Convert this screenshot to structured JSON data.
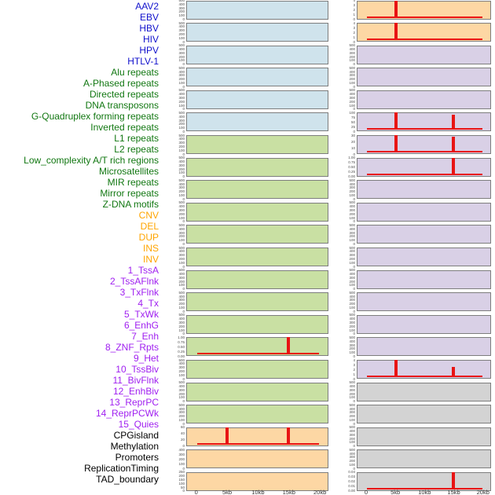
{
  "chart_data": {
    "type": "line",
    "title": "",
    "description": "Grid of 44 genomic-feature profile panels (two columns of 22 rows) showing density around a 0-20kb window; red spikes mark enrichment at 5kb and 15kb",
    "x_ticks": [
      "0",
      "5kb",
      "10kb",
      "15kb",
      "20kb"
    ],
    "x_range_kb": [
      0,
      20
    ],
    "spike_color": "#e81414",
    "groups": {
      "virus": {
        "label_color": "#1111cc",
        "fill": "#cfe3ec"
      },
      "repeat": {
        "label_color": "#117711",
        "fill": "#c9e0a3"
      },
      "sv": {
        "label_color": "#ffa500",
        "fill": "#fdd7a4"
      },
      "chromhmm": {
        "label_color": "#a020f0",
        "fill": "#d9d0e6"
      },
      "other": {
        "label_color": "#000000",
        "fill": "#d3d3d3"
      }
    },
    "panels": [
      {
        "label": "AAV2",
        "group": "virus",
        "column": "left",
        "row": 1,
        "y_ticks": [
          "500",
          "400",
          "300",
          "200",
          "100",
          "0"
        ],
        "spikes": [],
        "baseline": false
      },
      {
        "label": "EBV",
        "group": "virus",
        "column": "left",
        "row": 2,
        "y_ticks": [
          "500",
          "400",
          "300",
          "200",
          "100",
          "0"
        ],
        "spikes": [],
        "baseline": false
      },
      {
        "label": "HBV",
        "group": "virus",
        "column": "left",
        "row": 3,
        "y_ticks": [
          "500",
          "400",
          "300",
          "200",
          "100",
          "0"
        ],
        "spikes": [],
        "baseline": false
      },
      {
        "label": "HIV",
        "group": "virus",
        "column": "left",
        "row": 4,
        "y_ticks": [
          "500",
          "400",
          "300",
          "200",
          "100",
          "0"
        ],
        "spikes": [],
        "baseline": false
      },
      {
        "label": "HPV",
        "group": "virus",
        "column": "left",
        "row": 5,
        "y_ticks": [
          "500",
          "400",
          "300",
          "200",
          "100",
          "0"
        ],
        "spikes": [],
        "baseline": false
      },
      {
        "label": "HTLV-1",
        "group": "virus",
        "column": "left",
        "row": 6,
        "y_ticks": [
          "500",
          "400",
          "300",
          "200",
          "100",
          "0"
        ],
        "spikes": [],
        "baseline": false
      },
      {
        "label": "Alu repeats",
        "group": "repeat",
        "column": "left",
        "row": 7,
        "y_ticks": [
          "500",
          "400",
          "300",
          "200",
          "100",
          "0"
        ],
        "spikes": [],
        "baseline": false
      },
      {
        "label": "A-Phased repeats",
        "group": "repeat",
        "column": "left",
        "row": 8,
        "y_ticks": [
          "500",
          "400",
          "300",
          "200",
          "100",
          "0"
        ],
        "spikes": [],
        "baseline": false
      },
      {
        "label": "Directed repeats",
        "group": "repeat",
        "column": "left",
        "row": 9,
        "y_ticks": [
          "500",
          "400",
          "300",
          "200",
          "100",
          "0"
        ],
        "spikes": [],
        "baseline": false
      },
      {
        "label": "DNA transposons",
        "group": "repeat",
        "column": "left",
        "row": 10,
        "y_ticks": [
          "500",
          "400",
          "300",
          "200",
          "100",
          "0"
        ],
        "spikes": [],
        "baseline": false
      },
      {
        "label": "G-Quadruplex forming repeats",
        "group": "repeat",
        "column": "left",
        "row": 11,
        "y_ticks": [
          "500",
          "400",
          "300",
          "200",
          "100",
          "0"
        ],
        "spikes": [],
        "baseline": false
      },
      {
        "label": "Inverted repeats",
        "group": "repeat",
        "column": "left",
        "row": 12,
        "y_ticks": [
          "500",
          "400",
          "300",
          "200",
          "100",
          "0"
        ],
        "spikes": [],
        "baseline": false
      },
      {
        "label": "L1 repeats",
        "group": "repeat",
        "column": "left",
        "row": 13,
        "y_ticks": [
          "500",
          "400",
          "300",
          "200",
          "100",
          "0"
        ],
        "spikes": [],
        "baseline": false
      },
      {
        "label": "L2 repeats",
        "group": "repeat",
        "column": "left",
        "row": 14,
        "y_ticks": [
          "500",
          "400",
          "300",
          "200",
          "100",
          "0"
        ],
        "spikes": [],
        "baseline": false
      },
      {
        "label": "Low_complexity A/T rich regions",
        "group": "repeat",
        "column": "left",
        "row": 15,
        "y_ticks": [
          "500",
          "400",
          "300",
          "200",
          "100",
          "0"
        ],
        "spikes": [],
        "baseline": false
      },
      {
        "label": "Microsatellites",
        "group": "repeat",
        "column": "left",
        "row": 16,
        "y_ticks": [
          "1.00",
          "0.75",
          "0.50",
          "0.25",
          "0.00"
        ],
        "spikes": [
          {
            "x_kb": 15,
            "frac": 1.0
          }
        ],
        "baseline": true
      },
      {
        "label": "MIR repeats",
        "group": "repeat",
        "column": "left",
        "row": 17,
        "y_ticks": [
          "500",
          "400",
          "300",
          "200",
          "100",
          "0"
        ],
        "spikes": [],
        "baseline": false
      },
      {
        "label": "Mirror repeats",
        "group": "repeat",
        "column": "left",
        "row": 18,
        "y_ticks": [
          "500",
          "400",
          "300",
          "200",
          "100",
          "0"
        ],
        "spikes": [],
        "baseline": false
      },
      {
        "label": "Z-DNA motifs",
        "group": "repeat",
        "column": "left",
        "row": 19,
        "y_ticks": [
          "500",
          "400",
          "300",
          "200",
          "100",
          "0"
        ],
        "spikes": [],
        "baseline": false
      },
      {
        "label": "CNV",
        "group": "sv",
        "column": "left",
        "row": 20,
        "y_ticks": [
          "60",
          "40",
          "20",
          "0"
        ],
        "spikes": [
          {
            "x_kb": 5,
            "frac": 1.0
          },
          {
            "x_kb": 15,
            "frac": 1.0
          }
        ],
        "baseline": true
      },
      {
        "label": "DEL",
        "group": "sv",
        "column": "left",
        "row": 21,
        "y_ticks": [
          "400",
          "300",
          "200",
          "100",
          "0"
        ],
        "spikes": [],
        "baseline": false
      },
      {
        "label": "DUP",
        "group": "sv",
        "column": "left",
        "row": 22,
        "y_ticks": [
          "250",
          "200",
          "150",
          "100",
          "50",
          "0"
        ],
        "spikes": [],
        "baseline": false
      },
      {
        "label": "INS",
        "group": "sv",
        "column": "right",
        "row": 1,
        "y_ticks": [
          "4",
          "3",
          "2",
          "1",
          "0"
        ],
        "spikes": [
          {
            "x_kb": 5,
            "frac": 1.0
          }
        ],
        "baseline": true
      },
      {
        "label": "INV",
        "group": "sv",
        "column": "right",
        "row": 2,
        "y_ticks": [
          "4",
          "3",
          "2",
          "1",
          "0"
        ],
        "spikes": [
          {
            "x_kb": 5,
            "frac": 1.0
          }
        ],
        "baseline": true
      },
      {
        "label": "1_TssA",
        "group": "chromhmm",
        "column": "right",
        "row": 3,
        "y_ticks": [
          "500",
          "400",
          "300",
          "200",
          "100",
          "0"
        ],
        "spikes": [],
        "baseline": false
      },
      {
        "label": "2_TssAFlnk",
        "group": "chromhmm",
        "column": "right",
        "row": 4,
        "y_ticks": [
          "500",
          "400",
          "300",
          "200",
          "100",
          "0"
        ],
        "spikes": [],
        "baseline": false
      },
      {
        "label": "3_TxFlnk",
        "group": "chromhmm",
        "column": "right",
        "row": 5,
        "y_ticks": [
          "500",
          "400",
          "300",
          "200",
          "100",
          "0"
        ],
        "spikes": [],
        "baseline": false
      },
      {
        "label": "4_Tx",
        "group": "chromhmm",
        "column": "right",
        "row": 6,
        "y_ticks": [
          "100",
          "75",
          "50",
          "25",
          "0"
        ],
        "spikes": [
          {
            "x_kb": 5,
            "frac": 1.0
          },
          {
            "x_kb": 15,
            "frac": 0.85
          }
        ],
        "baseline": true
      },
      {
        "label": "5_TxWk",
        "group": "chromhmm",
        "column": "right",
        "row": 7,
        "y_ticks": [
          "30",
          "20",
          "10",
          "0"
        ],
        "spikes": [
          {
            "x_kb": 5,
            "frac": 1.0
          },
          {
            "x_kb": 15,
            "frac": 0.9
          }
        ],
        "baseline": true
      },
      {
        "label": "6_EnhG",
        "group": "chromhmm",
        "column": "right",
        "row": 8,
        "y_ticks": [
          "1.00",
          "0.75",
          "0.50",
          "0.25",
          "0.00"
        ],
        "spikes": [
          {
            "x_kb": 15,
            "frac": 1.0
          }
        ],
        "baseline": true
      },
      {
        "label": "7_Enh",
        "group": "chromhmm",
        "column": "right",
        "row": 9,
        "y_ticks": [
          "500",
          "400",
          "300",
          "200",
          "100",
          "0"
        ],
        "spikes": [],
        "baseline": false
      },
      {
        "label": "8_ZNF_Rpts",
        "group": "chromhmm",
        "column": "right",
        "row": 10,
        "y_ticks": [
          "500",
          "400",
          "300",
          "200",
          "100",
          "0"
        ],
        "spikes": [],
        "baseline": false
      },
      {
        "label": "9_Het",
        "group": "chromhmm",
        "column": "right",
        "row": 11,
        "y_ticks": [
          "500",
          "400",
          "300",
          "200",
          "100",
          "0"
        ],
        "spikes": [],
        "baseline": false
      },
      {
        "label": "10_TssBiv",
        "group": "chromhmm",
        "column": "right",
        "row": 12,
        "y_ticks": [
          "500",
          "400",
          "300",
          "200",
          "100",
          "0"
        ],
        "spikes": [],
        "baseline": false
      },
      {
        "label": "11_BivFlnk",
        "group": "chromhmm",
        "column": "right",
        "row": 13,
        "y_ticks": [
          "500",
          "400",
          "300",
          "200",
          "100",
          "0"
        ],
        "spikes": [],
        "baseline": false
      },
      {
        "label": "12_EnhBiv",
        "group": "chromhmm",
        "column": "right",
        "row": 14,
        "y_ticks": [
          "500",
          "400",
          "300",
          "200",
          "100",
          "0"
        ],
        "spikes": [],
        "baseline": false
      },
      {
        "label": "13_ReprPC",
        "group": "chromhmm",
        "column": "right",
        "row": 15,
        "y_ticks": [
          "500",
          "400",
          "300",
          "200",
          "100",
          "0"
        ],
        "spikes": [],
        "baseline": false
      },
      {
        "label": "14_ReprPCWk",
        "group": "chromhmm",
        "column": "right",
        "row": 16,
        "y_ticks": [
          "500",
          "400",
          "300",
          "200",
          "100",
          "0"
        ],
        "spikes": [],
        "baseline": false
      },
      {
        "label": "15_Quies",
        "group": "chromhmm",
        "column": "right",
        "row": 17,
        "y_ticks": [
          "4",
          "3",
          "2",
          "1",
          "0"
        ],
        "spikes": [
          {
            "x_kb": 5,
            "frac": 1.0
          },
          {
            "x_kb": 15,
            "frac": 0.57
          }
        ],
        "baseline": true
      },
      {
        "label": "CPGisland",
        "group": "other",
        "column": "right",
        "row": 18,
        "y_ticks": [
          "500",
          "400",
          "300",
          "200",
          "100",
          "0"
        ],
        "spikes": [],
        "baseline": false
      },
      {
        "label": "Methylation",
        "group": "other",
        "column": "right",
        "row": 19,
        "y_ticks": [
          "500",
          "400",
          "300",
          "200",
          "100",
          "0"
        ],
        "spikes": [],
        "baseline": false
      },
      {
        "label": "Promoters",
        "group": "other",
        "column": "right",
        "row": 20,
        "y_ticks": [
          "500",
          "400",
          "300",
          "200",
          "100",
          "0"
        ],
        "spikes": [],
        "baseline": false
      },
      {
        "label": "ReplicationTiming",
        "group": "other",
        "column": "right",
        "row": 21,
        "y_ticks": [
          "500",
          "400",
          "300",
          "200",
          "100",
          "0"
        ],
        "spikes": [],
        "baseline": false
      },
      {
        "label": "TAD_boundary",
        "group": "other",
        "column": "right",
        "row": 22,
        "y_ticks": [
          "0.04",
          "0.03",
          "0.02",
          "0.01",
          "0.00"
        ],
        "spikes": [
          {
            "x_kb": 15,
            "frac": 1.0
          }
        ],
        "baseline": true
      }
    ]
  }
}
